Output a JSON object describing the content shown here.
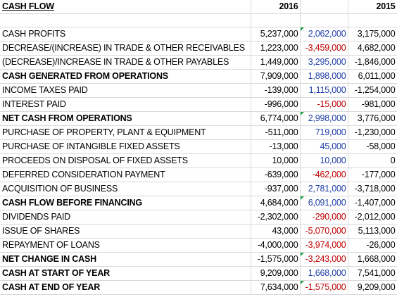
{
  "sheet": {
    "header": {
      "title": "CASH FLOW",
      "col_2016": "2016",
      "col_2015": "2015"
    },
    "rows": [
      {
        "label": "CASH PROFITS",
        "v2016": "5,237,000",
        "vmid": "2,062,000",
        "mid_color": "blue",
        "v2015": "3,175,000",
        "bold": false,
        "flag": true
      },
      {
        "label": "DECREASE/(INCREASE) IN TRADE & OTHER RECEIVABLES",
        "v2016": "1,223,000",
        "vmid": "-3,459,000",
        "mid_color": "red",
        "v2015": "4,682,000",
        "bold": false,
        "flag": false
      },
      {
        "label": "(DECREASE)/INCREASE IN TRADE & OTHER PAYABLES",
        "v2016": "1,449,000",
        "vmid": "3,295,000",
        "mid_color": "blue",
        "v2015": "-1,846,000",
        "bold": false,
        "flag": false
      },
      {
        "label": "CASH GENERATED FROM OPERATIONS",
        "v2016": "7,909,000",
        "vmid": "1,898,000",
        "mid_color": "blue",
        "v2015": "6,011,000",
        "bold": true,
        "flag": false
      },
      {
        "label": "INCOME TAXES PAID",
        "v2016": "-139,000",
        "vmid": "1,115,000",
        "mid_color": "blue",
        "v2015": "-1,254,000",
        "bold": false,
        "flag": false
      },
      {
        "label": "INTEREST PAID",
        "v2016": "-996,000",
        "vmid": "-15,000",
        "mid_color": "red",
        "v2015": "-981,000",
        "bold": false,
        "flag": false
      },
      {
        "label": "NET CASH FROM OPERATIONS",
        "v2016": "6,774,000",
        "vmid": "2,998,000",
        "mid_color": "blue",
        "v2015": "3,776,000",
        "bold": true,
        "flag": true
      },
      {
        "label": "PURCHASE OF PROPERTY, PLANT & EQUIPMENT",
        "v2016": "-511,000",
        "vmid": "719,000",
        "mid_color": "blue",
        "v2015": "-1,230,000",
        "bold": false,
        "flag": false
      },
      {
        "label": "PURCHASE OF INTANGIBLE FIXED ASSETS",
        "v2016": "-13,000",
        "vmid": "45,000",
        "mid_color": "blue",
        "v2015": "-58,000",
        "bold": false,
        "flag": false
      },
      {
        "label": "PROCEEDS ON DISPOSAL OF FIXED ASSETS",
        "v2016": "10,000",
        "vmid": "10,000",
        "mid_color": "blue",
        "v2015": "0",
        "bold": false,
        "flag": false
      },
      {
        "label": "DEFERRED CONSIDERATION PAYMENT",
        "v2016": "-639,000",
        "vmid": "-462,000",
        "mid_color": "red",
        "v2015": "-177,000",
        "bold": false,
        "flag": false
      },
      {
        "label": "ACQUISITION OF BUSINESS",
        "v2016": "-937,000",
        "vmid": "2,781,000",
        "mid_color": "blue",
        "v2015": "-3,718,000",
        "bold": false,
        "flag": false
      },
      {
        "label": "CASH FLOW BEFORE FINANCING",
        "v2016": "4,684,000",
        "vmid": "6,091,000",
        "mid_color": "blue",
        "v2015": "-1,407,000",
        "bold": true,
        "flag": true
      },
      {
        "label": "DIVIDENDS PAID",
        "v2016": "-2,302,000",
        "vmid": "-290,000",
        "mid_color": "red",
        "v2015": "-2,012,000",
        "bold": false,
        "flag": false
      },
      {
        "label": "ISSUE OF SHARES",
        "v2016": "43,000",
        "vmid": "-5,070,000",
        "mid_color": "red",
        "v2015": "5,113,000",
        "bold": false,
        "flag": false
      },
      {
        "label": "REPAYMENT OF LOANS",
        "v2016": "-4,000,000",
        "vmid": "-3,974,000",
        "mid_color": "red",
        "v2015": "-26,000",
        "bold": false,
        "flag": false
      },
      {
        "label": "NET CHANGE IN CASH",
        "v2016": "-1,575,000",
        "vmid": "-3,243,000",
        "mid_color": "red",
        "v2015": "1,668,000",
        "bold": true,
        "flag": true
      },
      {
        "label": "CASH AT START OF YEAR",
        "v2016": "9,209,000",
        "vmid": "1,668,000",
        "mid_color": "blue",
        "v2015": "7,541,000",
        "bold": true,
        "flag": false
      },
      {
        "label": "CASH AT END OF YEAR",
        "v2016": "7,634,000",
        "vmid": "-1,575,000",
        "mid_color": "red",
        "v2015": "9,209,000",
        "bold": true,
        "flag": true
      }
    ]
  }
}
